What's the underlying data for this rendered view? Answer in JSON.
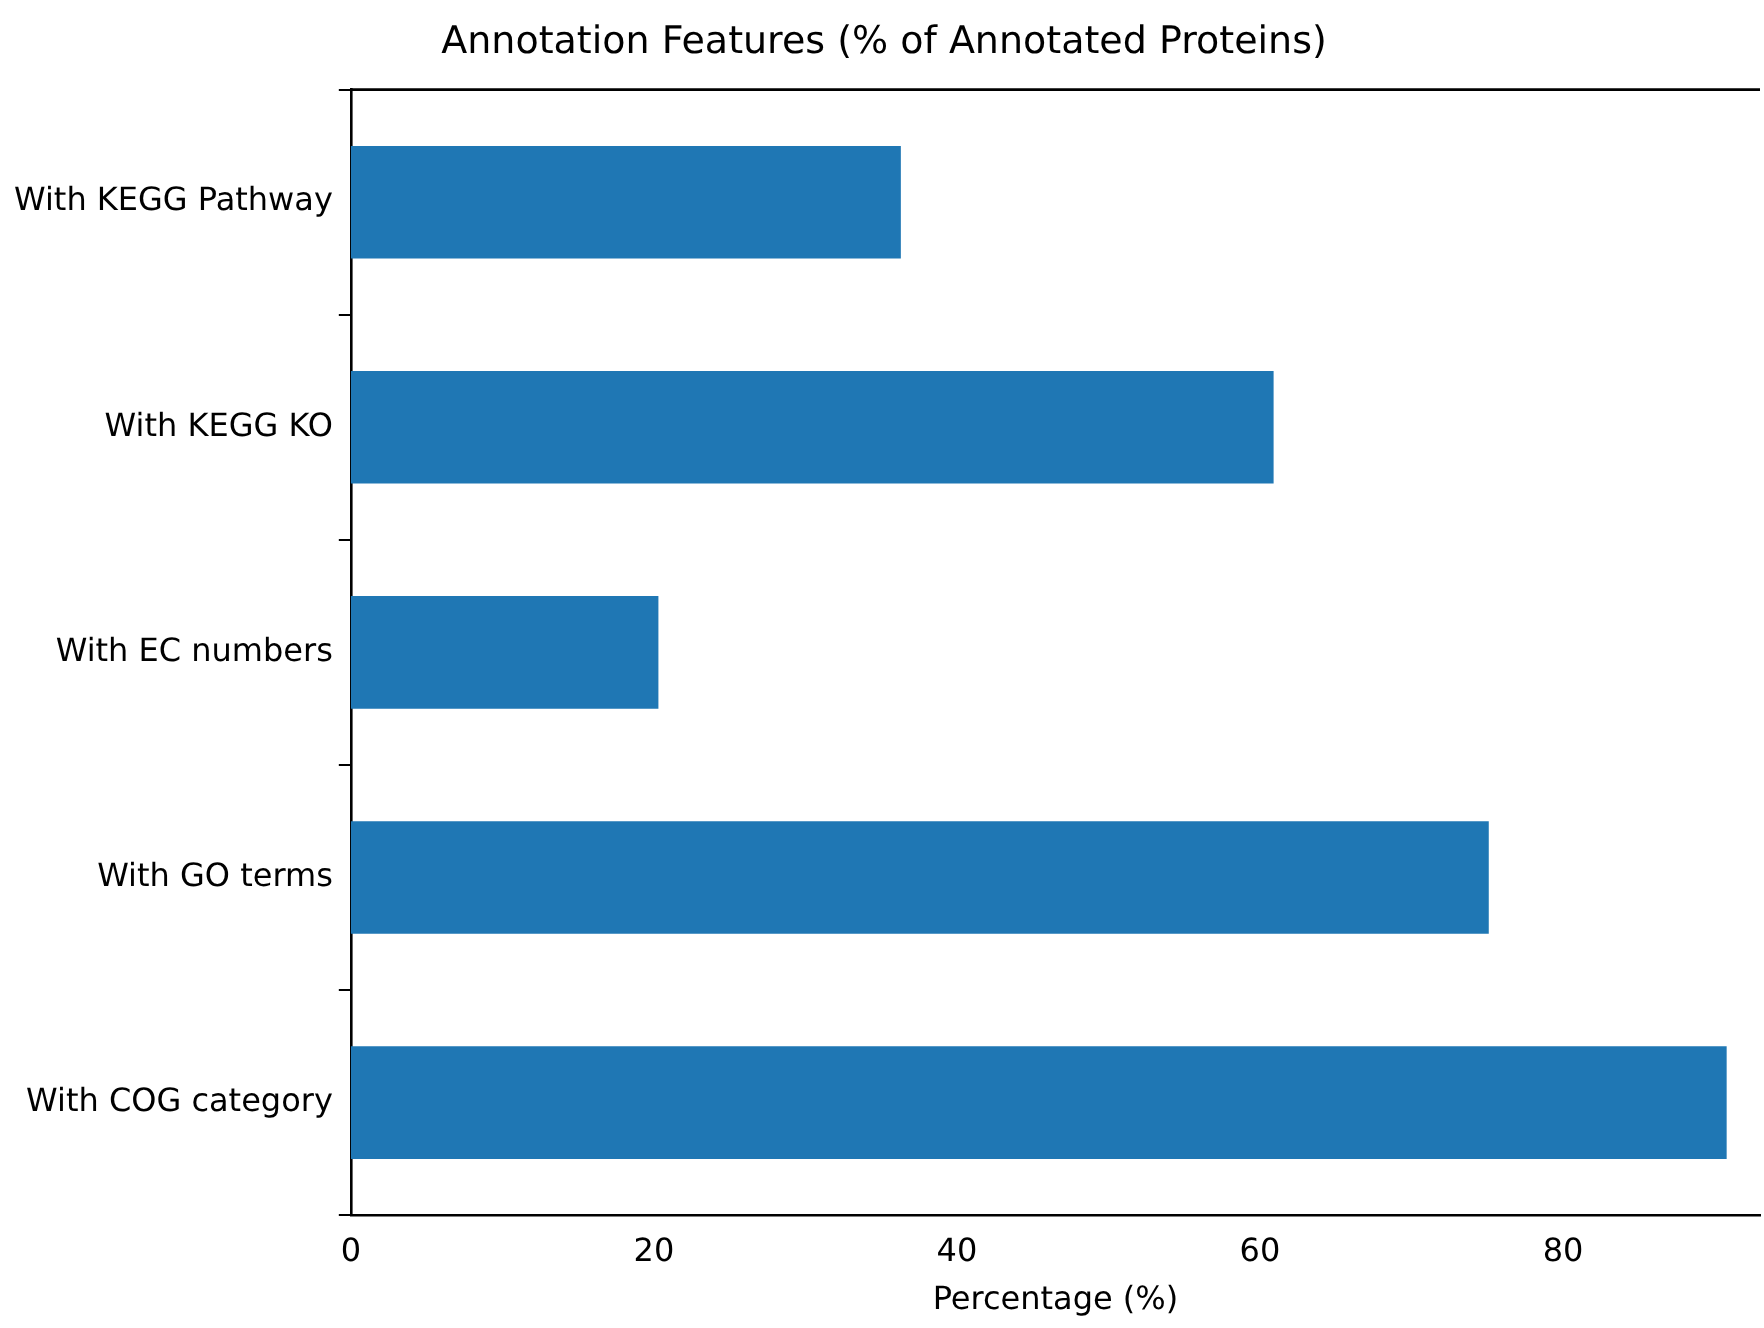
{
  "chart_data": {
    "type": "bar",
    "orientation": "horizontal",
    "title": "Annotation Features (% of Annotated Proteins)",
    "xlabel": "Percentage (%)",
    "categories": [
      "With KEGG Pathway",
      "With KEGG KO",
      "With EC numbers",
      "With GO terms",
      "With COG category"
    ],
    "values": [
      36.3,
      60.9,
      20.3,
      75.1,
      90.8
    ],
    "color": "#1f77b4",
    "xlim": [
      0,
      93
    ],
    "xticks": [
      0,
      20,
      40,
      60,
      80
    ],
    "grid": false,
    "legend": false
  }
}
